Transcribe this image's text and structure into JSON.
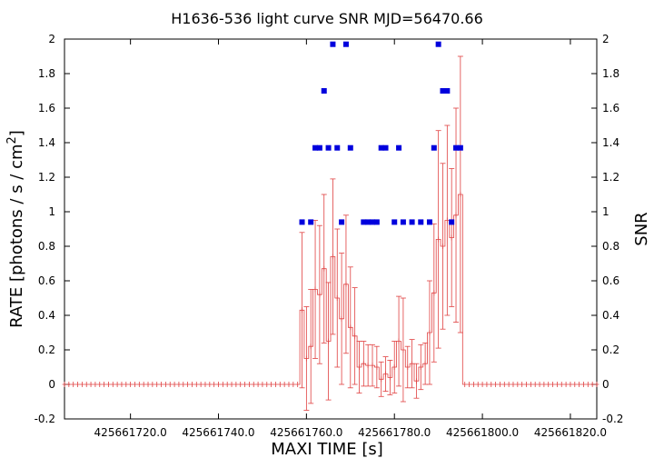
{
  "chart_data": {
    "type": "scatter",
    "title": "H1636-536 light curve  SNR MJD=56470.66",
    "xlabel": "MAXI TIME [s]",
    "ylabel_left": "RATE [photons / s / cm",
    "ylabel_left_sup": "2",
    "ylabel_left_end": "]",
    "ylabel_right": "SNR",
    "xlim": [
      425661705,
      425661826
    ],
    "ylim": [
      -0.2,
      2.0
    ],
    "x_ticks": [
      425661720,
      425661740,
      425661760,
      425661780,
      425661800,
      425661820
    ],
    "x_tick_labels": [
      "425661720.0",
      "425661740.0",
      "425661760.0",
      "425661780.0",
      "425661800.0",
      "425661820.0"
    ],
    "y_ticks": [
      -0.2,
      0,
      0.2,
      0.4,
      0.6,
      0.8,
      1,
      1.2,
      1.4,
      1.6,
      1.8,
      2
    ],
    "y_tick_labels": [
      "-0.2",
      "0",
      "0.2",
      "0.4",
      "0.6",
      "0.8",
      "1",
      "1.2",
      "1.4",
      "1.6",
      "1.8",
      "2"
    ],
    "y2_tick_labels": [
      "-0.2",
      "0",
      "0.2",
      "0.4",
      "0.6",
      "0.8",
      "1",
      "1.2",
      "1.4",
      "1.6",
      "1.8",
      "2"
    ],
    "grid": false,
    "rate_color": "#e04040",
    "snr_color": "#0000dd",
    "rate": {
      "x": [
        425661759,
        425661760,
        425661761,
        425661762,
        425661763,
        425661764,
        425661765,
        425661766,
        425661767,
        425661768,
        425661769,
        425661770,
        425661771,
        425661772,
        425661773,
        425661774,
        425661775,
        425661776,
        425661777,
        425661778,
        425661779,
        425661780,
        425661781,
        425661782,
        425661783,
        425661784,
        425661785,
        425661786,
        425661787,
        425661788,
        425661789,
        425661790,
        425661791,
        425661792,
        425661793,
        425661794,
        425661795
      ],
      "y": [
        0.43,
        0.15,
        0.22,
        0.55,
        0.52,
        0.67,
        0.25,
        0.74,
        0.5,
        0.38,
        0.58,
        0.33,
        0.28,
        0.1,
        0.12,
        0.11,
        0.11,
        0.1,
        0.03,
        0.06,
        0.04,
        0.1,
        0.25,
        0.2,
        0.1,
        0.12,
        0.02,
        0.1,
        0.12,
        0.3,
        0.53,
        0.84,
        0.8,
        0.95,
        0.85,
        0.98,
        1.1
      ],
      "yerr": [
        0.45,
        0.3,
        0.33,
        0.4,
        0.4,
        0.43,
        0.34,
        0.45,
        0.4,
        0.38,
        0.4,
        0.35,
        0.28,
        0.15,
        0.13,
        0.12,
        0.12,
        0.12,
        0.1,
        0.1,
        0.1,
        0.15,
        0.26,
        0.3,
        0.12,
        0.14,
        0.1,
        0.13,
        0.12,
        0.3,
        0.4,
        0.63,
        0.48,
        0.55,
        0.4,
        0.62,
        0.8
      ]
    },
    "snr": {
      "x": [
        425661759,
        425661761,
        425661762,
        425661763,
        425661764,
        425661765,
        425661766,
        425661767,
        425661768,
        425661769,
        425661770,
        425661773,
        425661774,
        425661775,
        425661776,
        425661777,
        425661778,
        425661780,
        425661781,
        425661782,
        425661784,
        425661786,
        425661788,
        425661789,
        425661790,
        425661791,
        425661792,
        425661793,
        425661794,
        425661795
      ],
      "y": [
        0.94,
        0.94,
        1.37,
        1.37,
        1.7,
        1.37,
        1.97,
        1.37,
        0.94,
        1.97,
        1.37,
        0.94,
        0.94,
        0.94,
        0.94,
        1.37,
        1.37,
        0.94,
        1.37,
        0.94,
        0.94,
        0.94,
        0.94,
        1.37,
        1.97,
        1.7,
        1.7,
        0.94,
        1.37,
        1.37
      ]
    }
  }
}
